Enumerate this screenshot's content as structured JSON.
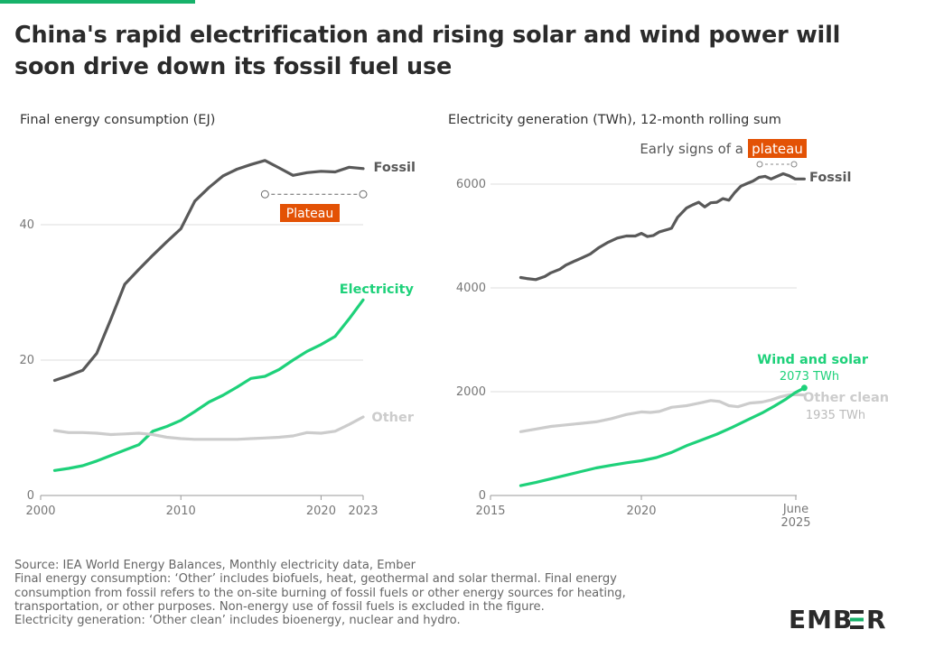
{
  "title": "China's rapid electrification and rising solar and wind power will soon drive down its fossil fuel use",
  "brand": "EMBER",
  "colors": {
    "fossil": "#595959",
    "electricity": "#1ed17a",
    "other": "#cccccc",
    "accent": "#e35205",
    "brand_bar": "#17b26a"
  },
  "source_lines": [
    "Source: IEA World Energy Balances, Monthly electricity data, Ember",
    "Final energy consumption: ‘Other’ includes biofuels, heat, geothermal and solar thermal. Final energy",
    "consumption from fossil refers to the on-site burning of fossil fuels or other energy sources for heating,",
    "transportation, or other purposes. Non-energy use of fossil fuels is excluded in the figure.",
    "Electricity generation: ‘Other clean’ includes bioenergy, nuclear and hydro."
  ],
  "chart_data": [
    {
      "type": "line",
      "title": "Final energy consumption (EJ)",
      "xlim": [
        2000,
        2023
      ],
      "ylim": [
        0,
        50
      ],
      "x_ticks": [
        2000,
        2010,
        2020,
        2023
      ],
      "y_ticks": [
        0,
        20,
        40
      ],
      "grid": true,
      "annotations": [
        {
          "text": "Plateau",
          "x_start": 2016,
          "x_end": 2023,
          "y": 44.5
        }
      ],
      "series": [
        {
          "name": "Fossil",
          "x": [
            2001,
            2002,
            2003,
            2004,
            2005,
            2006,
            2007,
            2008,
            2009,
            2010,
            2011,
            2012,
            2013,
            2014,
            2015,
            2016,
            2017,
            2018,
            2019,
            2020,
            2021,
            2022,
            2023
          ],
          "values": [
            17.0,
            17.7,
            18.5,
            21.0,
            26.0,
            31.2,
            33.4,
            35.5,
            37.5,
            39.4,
            43.5,
            45.5,
            47.2,
            48.2,
            48.9,
            49.5,
            48.4,
            47.3,
            47.7,
            47.9,
            47.8,
            48.5,
            48.3
          ]
        },
        {
          "name": "Electricity",
          "x": [
            2001,
            2002,
            2003,
            2004,
            2005,
            2006,
            2007,
            2008,
            2009,
            2010,
            2011,
            2012,
            2013,
            2014,
            2015,
            2016,
            2017,
            2018,
            2019,
            2020,
            2021,
            2022,
            2023
          ],
          "values": [
            3.7,
            4.0,
            4.4,
            5.1,
            5.9,
            6.7,
            7.5,
            9.5,
            10.2,
            11.1,
            12.4,
            13.8,
            14.8,
            16.0,
            17.3,
            17.6,
            18.6,
            20.0,
            21.3,
            22.3,
            23.5,
            26.1,
            28.9
          ]
        },
        {
          "name": "Other",
          "x": [
            2001,
            2002,
            2003,
            2004,
            2005,
            2006,
            2007,
            2008,
            2009,
            2010,
            2011,
            2012,
            2013,
            2014,
            2015,
            2016,
            2017,
            2018,
            2019,
            2020,
            2021,
            2022,
            2023
          ],
          "values": [
            9.6,
            9.3,
            9.3,
            9.2,
            9.0,
            9.1,
            9.2,
            9.0,
            8.6,
            8.4,
            8.3,
            8.3,
            8.3,
            8.3,
            8.4,
            8.5,
            8.6,
            8.8,
            9.3,
            9.2,
            9.5,
            10.5,
            11.6
          ]
        }
      ]
    },
    {
      "type": "line",
      "title": "Electricity generation (TWh), 12-month rolling sum",
      "xlim": [
        2015,
        2025.5
      ],
      "ylim": [
        0,
        6500
      ],
      "x_ticks": [
        "2015",
        "2020",
        "June",
        "2025"
      ],
      "y_ticks": [
        0,
        2000,
        4000,
        6000
      ],
      "grid": true,
      "annotations": [
        {
          "text": "Early signs of a",
          "highlight": "plateau",
          "x_start": 2023.8,
          "x_end": 2025.5,
          "y": 6400
        },
        {
          "text": "2073 TWh",
          "series": "Wind and solar"
        },
        {
          "text": "1935 TWh",
          "series": "Other clean"
        }
      ],
      "series": [
        {
          "name": "Fossil",
          "x": [
            2016.0,
            2016.2,
            2016.5,
            2016.8,
            2017.0,
            2017.3,
            2017.5,
            2017.8,
            2018.0,
            2018.3,
            2018.6,
            2018.9,
            2019.2,
            2019.5,
            2019.8,
            2020.0,
            2020.2,
            2020.4,
            2020.6,
            2020.9,
            2021.0,
            2021.2,
            2021.5,
            2021.7,
            2021.9,
            2022.1,
            2022.3,
            2022.5,
            2022.7,
            2022.9,
            2023.1,
            2023.3,
            2023.5,
            2023.7,
            2023.9,
            2024.1,
            2024.3,
            2024.5,
            2024.7,
            2024.9,
            2025.1,
            2025.4
          ],
          "values": [
            4200,
            4180,
            4160,
            4220,
            4290,
            4360,
            4440,
            4520,
            4570,
            4650,
            4780,
            4880,
            4960,
            5000,
            5000,
            5050,
            4990,
            5010,
            5080,
            5130,
            5150,
            5360,
            5540,
            5600,
            5650,
            5560,
            5640,
            5650,
            5720,
            5690,
            5840,
            5960,
            6010,
            6060,
            6130,
            6150,
            6100,
            6150,
            6200,
            6160,
            6100,
            6100
          ]
        },
        {
          "name": "Other clean",
          "x": [
            2016.0,
            2016.5,
            2017.0,
            2017.5,
            2018.0,
            2018.5,
            2019.0,
            2019.5,
            2020.0,
            2020.3,
            2020.6,
            2021.0,
            2021.5,
            2022.0,
            2022.3,
            2022.6,
            2022.9,
            2023.2,
            2023.6,
            2024.0,
            2024.3,
            2024.6,
            2024.9,
            2025.2,
            2025.4
          ],
          "values": [
            1230,
            1280,
            1330,
            1360,
            1390,
            1420,
            1480,
            1560,
            1610,
            1600,
            1620,
            1700,
            1730,
            1790,
            1830,
            1810,
            1730,
            1710,
            1780,
            1800,
            1840,
            1900,
            1940,
            1940,
            1935
          ]
        },
        {
          "name": "Wind and solar",
          "x": [
            2016.0,
            2016.5,
            2017.0,
            2017.5,
            2018.0,
            2018.5,
            2019.0,
            2019.5,
            2020.0,
            2020.5,
            2021.0,
            2021.5,
            2022.0,
            2022.5,
            2023.0,
            2023.5,
            2024.0,
            2024.4,
            2024.8,
            2025.1,
            2025.4
          ],
          "values": [
            190,
            250,
            320,
            390,
            460,
            530,
            580,
            630,
            670,
            730,
            830,
            960,
            1070,
            1180,
            1310,
            1450,
            1590,
            1720,
            1860,
            1980,
            2073
          ]
        }
      ]
    }
  ]
}
